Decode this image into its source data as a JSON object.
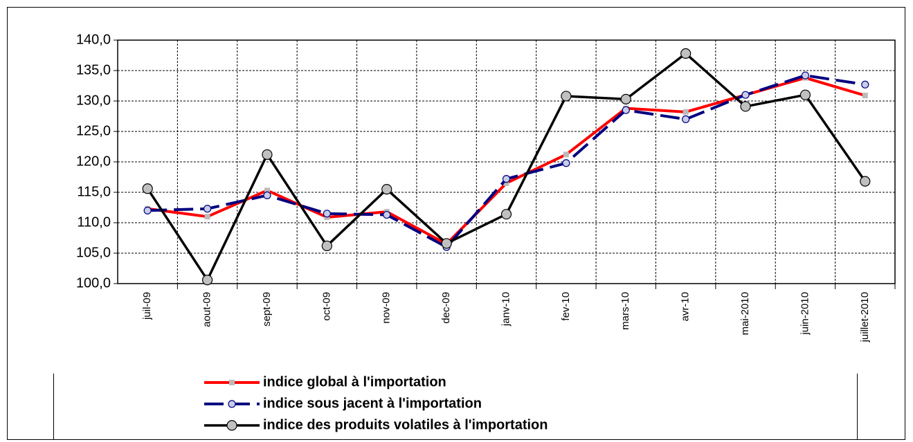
{
  "chart_data": {
    "type": "line",
    "categories": [
      "juil-09",
      "aout-09",
      "sept-09",
      "oct-09",
      "nov-09",
      "dec-09",
      "janv-10",
      "fev-10",
      "mars-10",
      "avr-10",
      "mai-2010",
      "juin-2010",
      "juillet-2010"
    ],
    "series": [
      {
        "name": "indice global à l'importation",
        "color": "#ff0000",
        "values": [
          112.3,
          111.0,
          115.3,
          110.9,
          111.8,
          106.5,
          116.5,
          121.2,
          128.8,
          128.2,
          131.0,
          133.8,
          130.9
        ]
      },
      {
        "name": "indice sous jacent à l'importation",
        "color": "#000080",
        "values": [
          112.0,
          112.3,
          114.5,
          111.5,
          111.3,
          106.0,
          117.2,
          119.8,
          128.5,
          127.0,
          131.0,
          134.2,
          132.7
        ]
      },
      {
        "name": "indice des produits volatiles à l'importation",
        "color": "#000000",
        "values": [
          115.6,
          100.6,
          121.2,
          106.2,
          115.5,
          106.6,
          111.4,
          130.8,
          130.3,
          137.8,
          129.1,
          131.0,
          116.8
        ]
      }
    ],
    "ylim": [
      100,
      140
    ],
    "yticks": [
      {
        "value": 100,
        "label": "100,0"
      },
      {
        "value": 105,
        "label": "105,0"
      },
      {
        "value": 110,
        "label": "110,0"
      },
      {
        "value": 115,
        "label": "115,0"
      },
      {
        "value": 120,
        "label": "120,0"
      },
      {
        "value": 125,
        "label": "125,0"
      },
      {
        "value": 130,
        "label": "130,0"
      },
      {
        "value": 135,
        "label": "135,0"
      },
      {
        "value": 140,
        "label": "140,0"
      }
    ],
    "grid": true
  }
}
